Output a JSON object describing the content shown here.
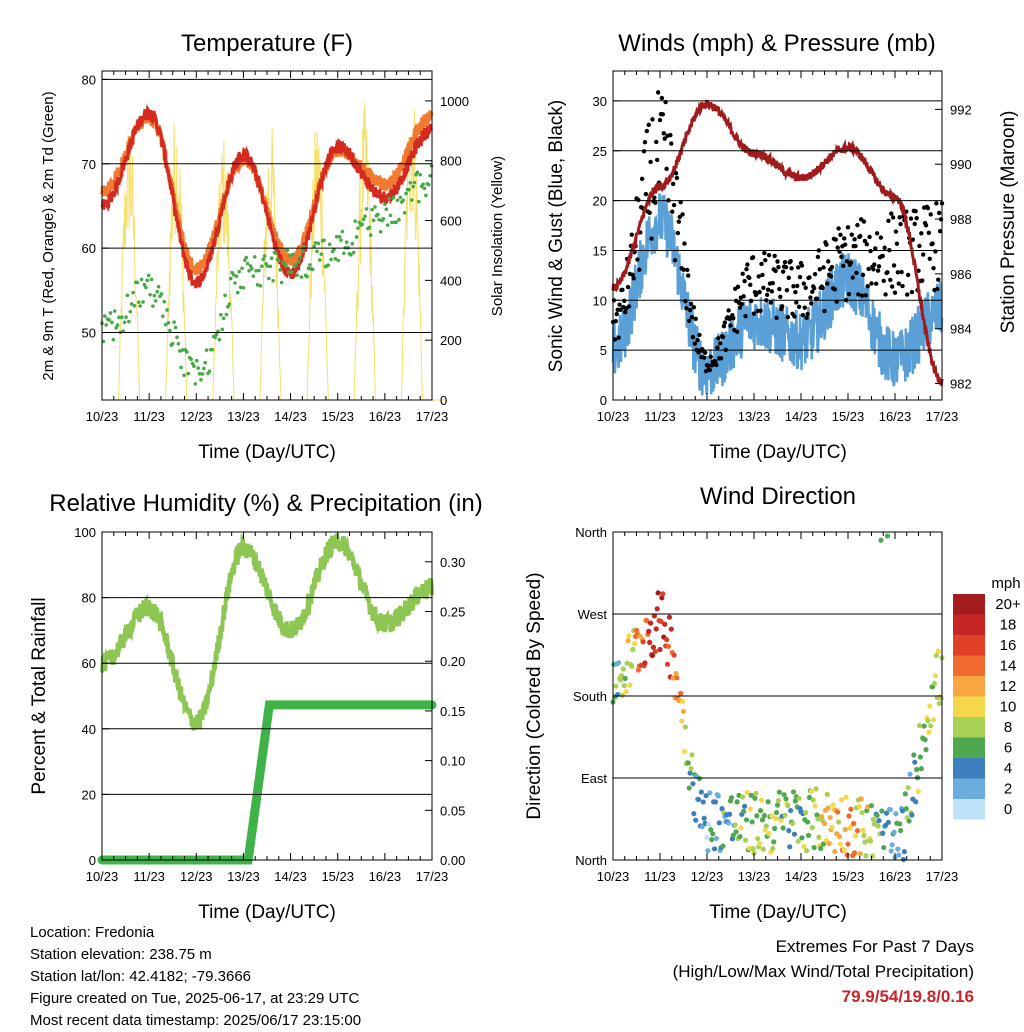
{
  "colors": {
    "temp2m": "#d42a20",
    "temp9m": "#f07a30",
    "dew": "#44aa44",
    "solar": "#f6e06a",
    "wind": "#5a9fd6",
    "gust": "#000000",
    "pressure": "#a01c1c",
    "rh": "#8dc653",
    "precip": "#3fb34a"
  },
  "x_ticks": [
    "10/23",
    "11/23",
    "12/23",
    "13/23",
    "14/23",
    "15/23",
    "16/23",
    "17/23"
  ],
  "x_label": "Time (Day/UTC)",
  "panels": {
    "temperature": {
      "title": "Temperature (F)",
      "left_label": "2m & 9m T (Red, Orange) & 2m Td (Green)",
      "right_label": "Solar Insolation (Yellow)",
      "left_ticks": [
        "50",
        "60",
        "70",
        "80"
      ],
      "right_ticks": [
        "0",
        "200",
        "400",
        "600",
        "800",
        "1000"
      ]
    },
    "winds": {
      "title": "Winds (mph) & Pressure (mb)",
      "left_label": "Sonic Wind & Gust (Blue, Black)",
      "right_label": "Station Pressure (Maroon)",
      "left_ticks": [
        "0",
        "5",
        "10",
        "15",
        "20",
        "25",
        "30"
      ],
      "right_ticks": [
        "982",
        "984",
        "986",
        "988",
        "990",
        "992"
      ]
    },
    "humidity": {
      "title": "Relative Humidity (%) & Precipitation (in)",
      "left_label": "Percent & Total Rainfall",
      "left_ticks": [
        "0",
        "20",
        "40",
        "60",
        "80",
        "100"
      ],
      "right_ticks": [
        "0.00",
        "0.05",
        "0.10",
        "0.15",
        "0.20",
        "0.25",
        "0.30"
      ]
    },
    "direction": {
      "title": "Wind Direction",
      "left_label": "Direction (Colored By Speed)",
      "left_ticks": [
        "North",
        "East",
        "South",
        "West",
        "North"
      ],
      "legend_title": "mph",
      "legend_labels": [
        "20+",
        "18",
        "16",
        "14",
        "12",
        "10",
        "8",
        "6",
        "4",
        "2",
        "0"
      ],
      "legend_colors": [
        "#a51c1c",
        "#c82626",
        "#e04028",
        "#f06a30",
        "#f7a640",
        "#f4d84a",
        "#a8d054",
        "#4fa84f",
        "#3d7ebd",
        "#6aaee0",
        "#bfe2f6"
      ]
    }
  },
  "info": {
    "location": "Location: Fredonia",
    "elevation": "Station elevation: 238.75 m",
    "latlon": "Station lat/lon: 42.4182; -79.3666",
    "created": "Figure created on Tue, 2025-06-17, at 23:29 UTC",
    "recent": "Most recent data timestamp: 2025/06/17 23:15:00"
  },
  "extremes": {
    "line1": "Extremes For Past 7 Days",
    "line2": "(High/Low/Max Wind/Total Precipitation)",
    "values": "79.9/54/19.8/0.16"
  },
  "chart_data": [
    {
      "type": "line",
      "title": "Temperature (F)",
      "xlabel": "Time (Day/UTC)",
      "x": [
        "10/23",
        "11/23",
        "12/23",
        "13/23",
        "14/23",
        "15/23",
        "16/23",
        "17/23"
      ],
      "ylim": [
        42,
        81
      ],
      "y2lim": [
        0,
        1100
      ],
      "series": [
        {
          "name": "2m T",
          "axis": "left",
          "values": [
            65,
            76,
            56,
            71,
            57,
            72,
            66,
            74
          ]
        },
        {
          "name": "9m T",
          "axis": "left",
          "values": [
            66,
            75,
            57,
            70,
            58,
            71,
            67,
            75
          ]
        },
        {
          "name": "2m Td",
          "axis": "left",
          "values": [
            50,
            55,
            45,
            57,
            58,
            60,
            64,
            68
          ]
        },
        {
          "name": "Solar Insolation",
          "axis": "right",
          "values": [
            0,
            950,
            1000,
            0,
            950,
            980,
            1000,
            1100
          ]
        }
      ]
    },
    {
      "type": "line",
      "title": "Winds (mph) & Pressure (mb)",
      "xlabel": "Time (Day/UTC)",
      "x": [
        "10/23",
        "11/23",
        "12/23",
        "13/23",
        "14/23",
        "15/23",
        "16/23",
        "17/23"
      ],
      "ylim": [
        0,
        33
      ],
      "y2lim": [
        981.4,
        993.4
      ],
      "series": [
        {
          "name": "Sonic Wind",
          "axis": "left",
          "values": [
            5,
            18,
            3,
            8,
            6,
            12,
            4,
            9
          ]
        },
        {
          "name": "Gust",
          "axis": "left",
          "values": [
            10,
            31,
            5,
            15,
            14,
            18,
            19,
            20
          ]
        },
        {
          "name": "Station Pressure",
          "axis": "right",
          "values": [
            985.5,
            989.2,
            992.2,
            990.4,
            989.5,
            990.6,
            988.8,
            982.1
          ]
        }
      ]
    },
    {
      "type": "line",
      "title": "Relative Humidity (%) & Precipitation (in)",
      "xlabel": "Time (Day/UTC)",
      "x": [
        "10/23",
        "11/23",
        "12/23",
        "13/23",
        "14/23",
        "15/23",
        "16/23",
        "17/23"
      ],
      "ylim": [
        0,
        100
      ],
      "y2lim": [
        0,
        0.33
      ],
      "series": [
        {
          "name": "Relative Humidity",
          "axis": "left",
          "values": [
            60,
            77,
            42,
            95,
            70,
            97,
            72,
            83
          ]
        },
        {
          "name": "Total Rainfall",
          "axis": "right",
          "values": [
            0,
            0,
            0,
            0.0,
            0.156,
            0.156,
            0.156,
            0.156
          ]
        }
      ]
    },
    {
      "type": "scatter",
      "title": "Wind Direction",
      "xlabel": "Time (Day/UTC)",
      "x": [
        "10/23",
        "11/23",
        "12/23",
        "13/23",
        "14/23",
        "15/23",
        "16/23",
        "17/23"
      ],
      "ylim": [
        0,
        360
      ],
      "y_tick_values": [
        0,
        90,
        180,
        270,
        360
      ]
    }
  ]
}
